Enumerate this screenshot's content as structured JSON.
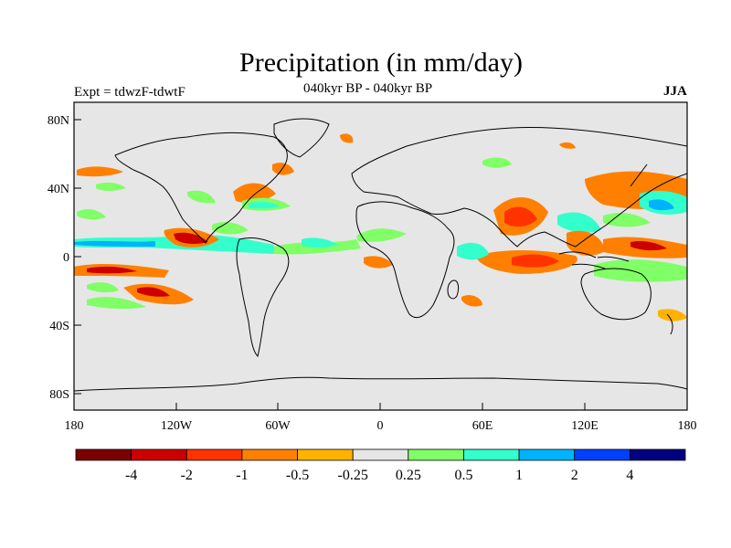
{
  "title": "Precipitation (in mm/day)",
  "subtitle_left": "Expt = tdwzF-tdwtF",
  "subtitle_center": "040kyr BP - 040kyr BP",
  "subtitle_right": "JJA",
  "colors": {
    "ocean": "#e6e6e6",
    "levels": [
      "#7a0000",
      "#cc0000",
      "#ff3300",
      "#ff8000",
      "#ffb300",
      "#e6e6e6",
      "#80ff66",
      "#33ffcc",
      "#00b3ff",
      "#0040ff",
      "#000080"
    ]
  },
  "x_ticks": [
    "180",
    "120W",
    "60W",
    "0",
    "60E",
    "120E",
    "180"
  ],
  "y_ticks": [
    "80N",
    "40N",
    "0",
    "40S",
    "80S"
  ],
  "colorbar_labels": [
    "-4",
    "-2",
    "-1",
    "-0.5",
    "-0.25",
    "0.25",
    "0.5",
    "1",
    "2",
    "4"
  ]
}
